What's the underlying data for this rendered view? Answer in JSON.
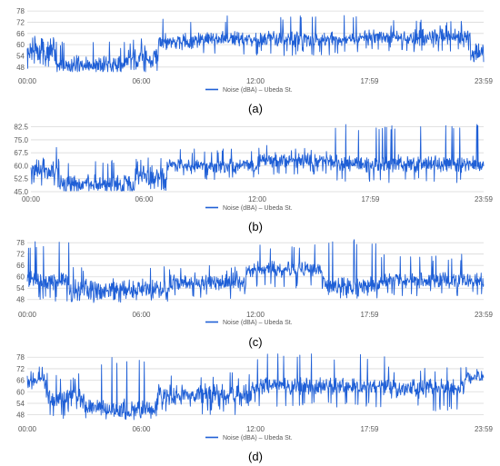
{
  "colors": {
    "series": "#1f5fd6",
    "grid": "#d9d9d9",
    "tick_text": "#595959"
  },
  "chart_data": [
    {
      "type": "line",
      "panel_label": "(a)",
      "title": "",
      "xlabel": "",
      "ylabel": "",
      "x_ticks": [
        "00:00",
        "06:00",
        "12:00",
        "17:59",
        "23:59"
      ],
      "y_ticks": [
        "48",
        "54",
        "60",
        "66",
        "72",
        "78"
      ],
      "ylim": [
        45,
        80
      ],
      "grid": true,
      "legend_position": "bottom",
      "series": [
        {
          "name": "Noise (dBA) – Ubeda St.",
          "color": "#1f5fd6",
          "segments": [
            {
              "t0": 0,
              "t1": 1.5,
              "base": 56,
              "amp": 6,
              "spike": 65,
              "dip": 47,
              "seed": 11
            },
            {
              "t0": 1.5,
              "t1": 5.2,
              "base": 49,
              "amp": 3.5,
              "spike": 62,
              "dip": 46,
              "seed": 12
            },
            {
              "t0": 5.2,
              "t1": 6.9,
              "base": 53,
              "amp": 5,
              "spike": 64,
              "dip": 46,
              "seed": 13
            },
            {
              "t0": 6.9,
              "t1": 9,
              "base": 62,
              "amp": 3,
              "spike": 74,
              "dip": 57,
              "seed": 14
            },
            {
              "t0": 9,
              "t1": 17.5,
              "base": 63,
              "amp": 3,
              "spike": 76,
              "dip": 54,
              "seed": 15
            },
            {
              "t0": 17.5,
              "t1": 23.3,
              "base": 64,
              "amp": 3,
              "spike": 74,
              "dip": 56,
              "seed": 16
            },
            {
              "t0": 23.3,
              "t1": 24,
              "base": 56,
              "amp": 4,
              "spike": 63,
              "dip": 52,
              "seed": 17
            }
          ]
        }
      ]
    },
    {
      "type": "line",
      "panel_label": "(b)",
      "title": "",
      "xlabel": "",
      "ylabel": "",
      "x_ticks": [
        "00:00",
        "06:00",
        "12:00",
        "17:59",
        "23:59"
      ],
      "y_ticks": [
        "45.0",
        "52.5",
        "60.0",
        "67.5",
        "75.0",
        "82.5"
      ],
      "ylim": [
        45,
        86
      ],
      "grid": true,
      "legend_position": "bottom",
      "series": [
        {
          "name": "Noise (dBA) – Ubeda St.",
          "color": "#1f5fd6",
          "segments": [
            {
              "t0": 0,
              "t1": 1.5,
              "base": 58,
              "amp": 5,
              "spike": 72,
              "dip": 47,
              "seed": 21
            },
            {
              "t0": 1.5,
              "t1": 5.5,
              "base": 49,
              "amp": 4,
              "spike": 64,
              "dip": 45,
              "seed": 22
            },
            {
              "t0": 5.5,
              "t1": 7.2,
              "base": 53,
              "amp": 5,
              "spike": 66,
              "dip": 45,
              "seed": 23
            },
            {
              "t0": 7.2,
              "t1": 12,
              "base": 60,
              "amp": 3,
              "spike": 70,
              "dip": 52,
              "seed": 24
            },
            {
              "t0": 12,
              "t1": 16,
              "base": 63,
              "amp": 3,
              "spike": 72,
              "dip": 55,
              "seed": 25
            },
            {
              "t0": 16,
              "t1": 24,
              "base": 61,
              "amp": 3.5,
              "spike": 84,
              "dip": 50,
              "seed": 26
            }
          ]
        }
      ]
    },
    {
      "type": "line",
      "panel_label": "(c)",
      "title": "",
      "xlabel": "",
      "ylabel": "",
      "x_ticks": [
        "00:00",
        "06:00",
        "12:00",
        "17:59",
        "23:59"
      ],
      "y_ticks": [
        "48",
        "54",
        "60",
        "66",
        "72",
        "78"
      ],
      "ylim": [
        45,
        80
      ],
      "grid": true,
      "legend_position": "bottom",
      "series": [
        {
          "name": "Noise (dBA) – Ubeda St.",
          "color": "#1f5fd6",
          "segments": [
            {
              "t0": 0,
              "t1": 2.2,
              "base": 58,
              "amp": 3.5,
              "spike": 79,
              "dip": 47,
              "seed": 31
            },
            {
              "t0": 2.2,
              "t1": 7.5,
              "base": 53,
              "amp": 4,
              "spike": 66,
              "dip": 46,
              "seed": 32
            },
            {
              "t0": 7.5,
              "t1": 11.5,
              "base": 57,
              "amp": 3,
              "spike": 66,
              "dip": 48,
              "seed": 33
            },
            {
              "t0": 11.5,
              "t1": 15.5,
              "base": 64,
              "amp": 3,
              "spike": 78,
              "dip": 54,
              "seed": 34
            },
            {
              "t0": 15.5,
              "t1": 18.5,
              "base": 55,
              "amp": 3.5,
              "spike": 80,
              "dip": 48,
              "seed": 35
            },
            {
              "t0": 18.5,
              "t1": 24,
              "base": 58,
              "amp": 3,
              "spike": 72,
              "dip": 50,
              "seed": 36
            }
          ]
        }
      ]
    },
    {
      "type": "line",
      "panel_label": "(d)",
      "title": "",
      "xlabel": "",
      "ylabel": "",
      "x_ticks": [
        "00:00",
        "06:00",
        "12:00",
        "17:59",
        "23:59"
      ],
      "y_ticks": [
        "48",
        "54",
        "60",
        "66",
        "72",
        "78"
      ],
      "ylim": [
        45,
        80
      ],
      "grid": true,
      "legend_position": "bottom",
      "series": [
        {
          "name": "Noise (dBA) – Ubeda St.",
          "color": "#1f5fd6",
          "segments": [
            {
              "t0": 0,
              "t1": 1,
              "base": 66,
              "amp": 3,
              "spike": 74,
              "dip": 60,
              "seed": 41
            },
            {
              "t0": 1,
              "t1": 3,
              "base": 57,
              "amp": 5,
              "spike": 70,
              "dip": 46,
              "seed": 42
            },
            {
              "t0": 3,
              "t1": 6.8,
              "base": 51,
              "amp": 4,
              "spike": 78,
              "dip": 46,
              "seed": 43
            },
            {
              "t0": 6.8,
              "t1": 11.8,
              "base": 58,
              "amp": 4,
              "spike": 70,
              "dip": 48,
              "seed": 44
            },
            {
              "t0": 11.8,
              "t1": 19,
              "base": 63,
              "amp": 3,
              "spike": 80,
              "dip": 52,
              "seed": 45
            },
            {
              "t0": 19,
              "t1": 23,
              "base": 62,
              "amp": 3.5,
              "spike": 74,
              "dip": 50,
              "seed": 46
            },
            {
              "t0": 23,
              "t1": 24,
              "base": 68,
              "amp": 2.5,
              "spike": 74,
              "dip": 62,
              "seed": 47
            }
          ]
        }
      ]
    }
  ]
}
